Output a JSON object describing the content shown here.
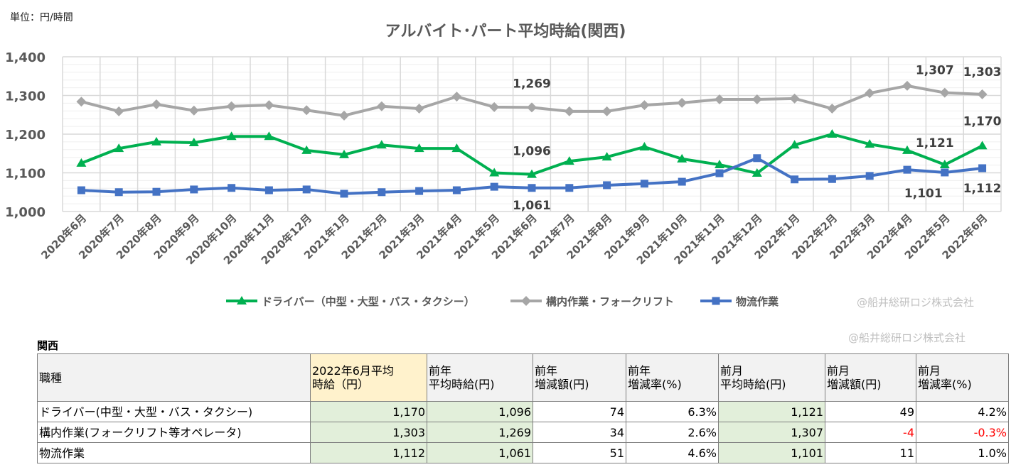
{
  "unit_label": "単位：円/時間",
  "watermark": "@船井総研ロジ株式会社",
  "chart_data": {
    "type": "line",
    "title": "アルバイト･パート平均時給(関西)",
    "xlabel": "",
    "ylabel": "",
    "ylim": [
      1000,
      1400
    ],
    "yticks": [
      "1,000",
      "1,100",
      "1,200",
      "1,300",
      "1,400"
    ],
    "grid": true,
    "legend_position": "bottom",
    "categories": [
      "2020年6月",
      "2020年7月",
      "2020年8月",
      "2020年9月",
      "2020年10月",
      "2020年11月",
      "2020年12月",
      "2021年1月",
      "2021年2月",
      "2021年3月",
      "2021年4月",
      "2021年5月",
      "2021年6月",
      "2021年7月",
      "2021年8月",
      "2021年9月",
      "2021年10月",
      "2021年11月",
      "2021年12月",
      "2022年1月",
      "2022年2月",
      "2022年3月",
      "2022年4月",
      "2022年5月",
      "2022年6月"
    ],
    "series": [
      {
        "name": "ドライバー（中型・大型・バス・タクシー）",
        "color": "#00b050",
        "marker": "triangle",
        "values": [
          1125,
          1163,
          1180,
          1178,
          1194,
          1194,
          1158,
          1147,
          1172,
          1163,
          1163,
          1100,
          1096,
          1130,
          1141,
          1167,
          1136,
          1121,
          1099,
          1172,
          1200,
          1174,
          1158,
          1121,
          1170
        ]
      },
      {
        "name": "構内作業・フォークリフト",
        "color": "#a6a6a6",
        "marker": "diamond",
        "values": [
          1284,
          1259,
          1277,
          1261,
          1272,
          1275,
          1262,
          1248,
          1272,
          1266,
          1297,
          1270,
          1269,
          1259,
          1259,
          1275,
          1281,
          1290,
          1290,
          1292,
          1266,
          1306,
          1325,
          1307,
          1303
        ]
      },
      {
        "name": "物流作業",
        "color": "#4472c4",
        "marker": "square",
        "values": [
          1055,
          1050,
          1051,
          1057,
          1061,
          1055,
          1057,
          1046,
          1050,
          1053,
          1055,
          1064,
          1061,
          1061,
          1068,
          1072,
          1077,
          1099,
          1138,
          1083,
          1084,
          1092,
          1108,
          1101,
          1112
        ]
      }
    ],
    "data_labels": [
      {
        "text": "1,269",
        "series": 1,
        "index": 12
      },
      {
        "text": "1,096",
        "series": 0,
        "index": 12
      },
      {
        "text": "1,061",
        "series": 2,
        "index": 12
      },
      {
        "text": "1,307",
        "series": 1,
        "index": 23
      },
      {
        "text": "1,303",
        "series": 1,
        "index": 24
      },
      {
        "text": "1,121",
        "series": 0,
        "index": 23
      },
      {
        "text": "1,170",
        "series": 0,
        "index": 24
      },
      {
        "text": "1,101",
        "series": 2,
        "index": 23
      },
      {
        "text": "1,112",
        "series": 2,
        "index": 24
      }
    ]
  },
  "table": {
    "region": "関西",
    "headers": [
      "職種",
      "2022年6月平均\n時給（円）",
      "前年\n平均時給(円)",
      "前年\n増減額(円)",
      "前年\n増減率(%)",
      "前月\n平均時給(円)",
      "前月\n増減額(円)",
      "前月\n増減率(%)"
    ],
    "rows": [
      [
        "ドライバー(中型・大型・バス・タクシー)",
        "1,170",
        "1,096",
        "74",
        "6.3%",
        "1,121",
        "49",
        "4.2%"
      ],
      [
        "構内作業(フォークリフト等オペレータ)",
        "1,303",
        "1,269",
        "34",
        "2.6%",
        "1,307",
        "-4",
        "-0.3%"
      ],
      [
        "物流作業",
        "1,112",
        "1,061",
        "51",
        "4.6%",
        "1,101",
        "11",
        "1.0%"
      ]
    ]
  }
}
